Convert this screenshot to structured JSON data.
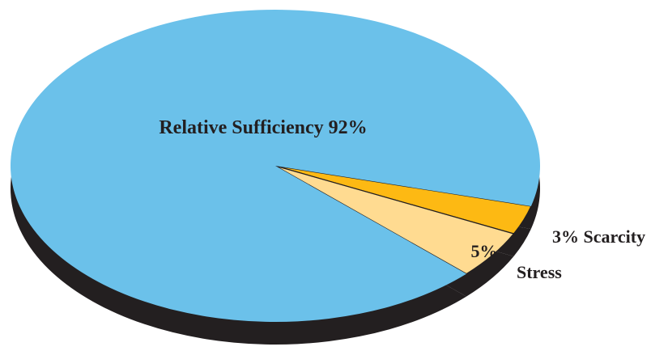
{
  "chart_data": {
    "type": "pie",
    "title": "",
    "slices": [
      {
        "name": "Relative Sufficiency",
        "value": 92,
        "label": "Relative Sufficiency 92%",
        "color": "#6bc1ea"
      },
      {
        "name": "Scarcity",
        "value": 3,
        "label": "3% Scarcity",
        "color": "#fdb913"
      },
      {
        "name": "Stress",
        "value": 5,
        "value_label": "5%",
        "label": "Stress",
        "color": "#ffdb91"
      }
    ],
    "depth_color": "#231f20",
    "legend": "none"
  }
}
